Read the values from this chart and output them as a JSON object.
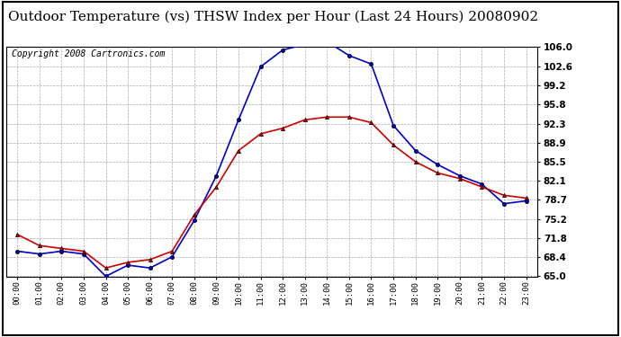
{
  "title": "Outdoor Temperature (vs) THSW Index per Hour (Last 24 Hours) 20080902",
  "copyright": "Copyright 2008 Cartronics.com",
  "hours": [
    "00:00",
    "01:00",
    "02:00",
    "03:00",
    "04:00",
    "05:00",
    "06:00",
    "07:00",
    "08:00",
    "09:00",
    "10:00",
    "11:00",
    "12:00",
    "13:00",
    "14:00",
    "15:00",
    "16:00",
    "17:00",
    "18:00",
    "19:00",
    "20:00",
    "21:00",
    "22:00",
    "23:00"
  ],
  "temp": [
    72.5,
    70.5,
    70.0,
    69.5,
    66.5,
    67.5,
    68.0,
    69.5,
    76.0,
    81.0,
    87.5,
    90.5,
    91.5,
    93.0,
    93.5,
    93.5,
    92.5,
    88.5,
    85.5,
    83.5,
    82.5,
    81.0,
    79.5,
    79.0
  ],
  "thsw": [
    69.5,
    69.0,
    69.5,
    69.0,
    65.0,
    67.0,
    66.5,
    68.5,
    75.0,
    83.0,
    93.0,
    102.5,
    105.5,
    106.5,
    107.0,
    104.5,
    103.0,
    92.0,
    87.5,
    85.0,
    83.0,
    81.5,
    78.0,
    78.5
  ],
  "ylim": [
    65.0,
    106.0
  ],
  "yticks": [
    65.0,
    68.4,
    71.8,
    75.2,
    78.7,
    82.1,
    85.5,
    88.9,
    92.3,
    95.8,
    99.2,
    102.6,
    106.0
  ],
  "temp_color": "#cc0000",
  "thsw_color": "#0000cc",
  "bg_color": "#ffffff",
  "grid_color": "#aaaaaa",
  "title_fontsize": 11,
  "copyright_fontsize": 7
}
